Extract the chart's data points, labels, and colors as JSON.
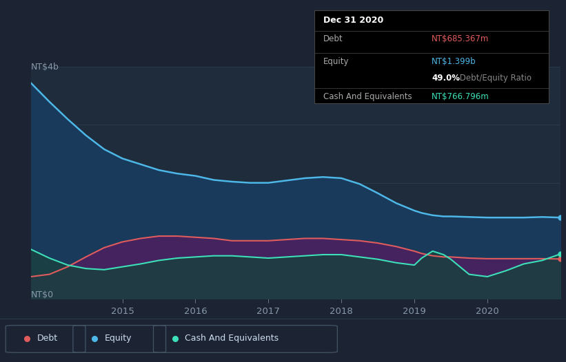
{
  "background_color": "#1c2333",
  "chart_bg_color": "#1e2c3c",
  "ylabel_top": "NT$4b",
  "ylabel_bottom": "NT$0",
  "xticks": [
    "2015",
    "2016",
    "2017",
    "2018",
    "2019",
    "2020"
  ],
  "equity_color": "#4db8e8",
  "equity_fill_color": "#1a3a5c",
  "debt_color": "#e05c5c",
  "debt_fill_color": "#4a2060",
  "cash_color": "#3de0b8",
  "cash_fill_color": "#1a4040",
  "grid_color": "#2a3f55",
  "years": [
    2013.75,
    2014.0,
    2014.25,
    2014.5,
    2014.75,
    2015.0,
    2015.25,
    2015.5,
    2015.75,
    2016.0,
    2016.25,
    2016.5,
    2016.75,
    2017.0,
    2017.25,
    2017.5,
    2017.75,
    2018.0,
    2018.25,
    2018.5,
    2018.75,
    2019.0,
    2019.1,
    2019.25,
    2019.4,
    2019.5,
    2019.75,
    2020.0,
    2020.25,
    2020.5,
    2020.75,
    2021.0
  ],
  "equity": [
    3.72,
    3.4,
    3.1,
    2.82,
    2.58,
    2.42,
    2.32,
    2.22,
    2.16,
    2.12,
    2.05,
    2.02,
    2.0,
    2.0,
    2.04,
    2.08,
    2.1,
    2.08,
    1.98,
    1.82,
    1.65,
    1.52,
    1.48,
    1.44,
    1.42,
    1.42,
    1.41,
    1.4,
    1.4,
    1.4,
    1.41,
    1.4
  ],
  "debt": [
    0.38,
    0.42,
    0.55,
    0.72,
    0.88,
    0.98,
    1.04,
    1.08,
    1.08,
    1.06,
    1.04,
    1.0,
    1.0,
    1.0,
    1.02,
    1.04,
    1.04,
    1.02,
    1.0,
    0.96,
    0.9,
    0.82,
    0.78,
    0.74,
    0.72,
    0.72,
    0.7,
    0.69,
    0.69,
    0.69,
    0.69,
    0.685
  ],
  "cash": [
    0.85,
    0.7,
    0.58,
    0.52,
    0.5,
    0.55,
    0.6,
    0.66,
    0.7,
    0.72,
    0.74,
    0.74,
    0.72,
    0.7,
    0.72,
    0.74,
    0.76,
    0.76,
    0.72,
    0.68,
    0.62,
    0.58,
    0.7,
    0.82,
    0.76,
    0.68,
    0.42,
    0.38,
    0.48,
    0.6,
    0.66,
    0.77
  ],
  "ylim_max": 4.0,
  "xmin": 2013.75,
  "xmax": 2021.0,
  "tooltip_title": "Dec 31 2020",
  "tooltip_debt_label": "Debt",
  "tooltip_debt_value": "NT$685.367m",
  "tooltip_equity_label": "Equity",
  "tooltip_equity_value": "NT$1.399b",
  "tooltip_ratio_bold": "49.0%",
  "tooltip_ratio_text": " Debt/Equity Ratio",
  "tooltip_cash_label": "Cash And Equivalents",
  "tooltip_cash_value": "NT$766.796m",
  "legend_items": [
    {
      "label": "Debt",
      "color": "#e05c5c"
    },
    {
      "label": "Equity",
      "color": "#4db8e8"
    },
    {
      "label": "Cash And Equivalents",
      "color": "#3de0b8"
    }
  ]
}
